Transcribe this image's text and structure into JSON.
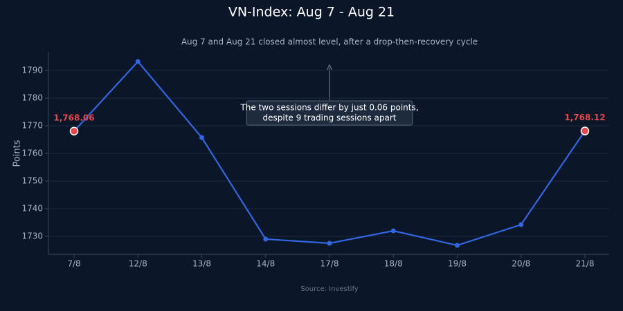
{
  "chart_data": {
    "type": "line",
    "title": "VN-Index: Aug 7 - Aug 21",
    "subtitle": "Aug 7 and Aug 21 closed almost level, after a drop-then-recovery cycle",
    "y_label": "Points",
    "source": "Source: Investify",
    "categories": [
      "7/8",
      "12/8",
      "13/8",
      "14/8",
      "17/8",
      "18/8",
      "19/8",
      "20/8",
      "21/8"
    ],
    "series": [
      {
        "name": "VN-Index",
        "color": "#3366e0",
        "values": [
          1768.06,
          1793.25,
          1765.75,
          1729,
          1727.5,
          1732,
          1726.75,
          1734.25,
          1768.12
        ],
        "value_labels": [
          "1,768.06",
          null,
          null,
          null,
          null,
          null,
          null,
          null,
          "1,768.12"
        ],
        "highlight_color": "#e5484d"
      }
    ],
    "annotation": {
      "lines": [
        "The two sessions differ by just 0.06 points,",
        "despite 9 trading sessions apart"
      ]
    },
    "ylim": [
      1723.5,
      1796.75
    ],
    "yticks": [
      1730,
      1740,
      1750,
      1760,
      1770,
      1780,
      1790
    ],
    "grid": true
  }
}
